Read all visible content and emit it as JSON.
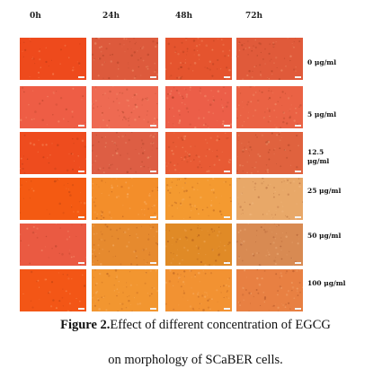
{
  "figure": {
    "columns": [
      "0h",
      "24h",
      "48h",
      "72h"
    ],
    "rows": [
      {
        "label": "0 μg/ml",
        "colors": [
          "#ee4a1c",
          "#dd5a3c",
          "#e5542e",
          "#e05a3a"
        ]
      },
      {
        "label": "5 μg/ml",
        "colors": [
          "#ee5d45",
          "#ee6a52",
          "#ec5e48",
          "#ea6244"
        ]
      },
      {
        "label": "12.5 μg/ml",
        "colors": [
          "#ee4c1e",
          "#dd5e44",
          "#e85a34",
          "#e0623e"
        ]
      },
      {
        "label": "25 μg/ml",
        "colors": [
          "#f45a12",
          "#f38e2a",
          "#f49a30",
          "#e8a868"
        ]
      },
      {
        "label": "50 μg/ml",
        "colors": [
          "#ea5a42",
          "#e68a2e",
          "#e08a26",
          "#d88a52"
        ]
      },
      {
        "label": "100 μg/ml",
        "colors": [
          "#f35616",
          "#f29630",
          "#f29232",
          "#e88042"
        ]
      }
    ]
  },
  "caption": {
    "bold_part": "Figure 2.",
    "line1_rest": "Effect of different concentration of EGCG",
    "line2": "on morphology of SCaBER cells."
  }
}
